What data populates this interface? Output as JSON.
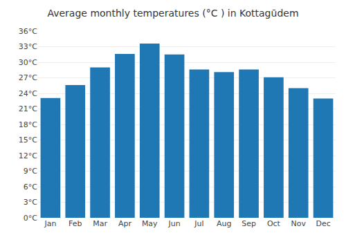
{
  "chart_data": {
    "type": "bar",
    "title": "Average monthly temperatures (°C ) in Kottagūdem",
    "categories": [
      "Jan",
      "Feb",
      "Mar",
      "Apr",
      "May",
      "Jun",
      "Jul",
      "Aug",
      "Sep",
      "Oct",
      "Nov",
      "Dec"
    ],
    "values": [
      23.1,
      25.6,
      29.0,
      31.6,
      33.6,
      31.5,
      28.6,
      28.1,
      28.6,
      27.1,
      25.0,
      23.0
    ],
    "ylim": [
      0,
      36
    ],
    "yticks": [
      {
        "value": 0,
        "label": "0°C"
      },
      {
        "value": 3,
        "label": "3°C"
      },
      {
        "value": 6,
        "label": "6°C"
      },
      {
        "value": 9,
        "label": "9°C"
      },
      {
        "value": 12,
        "label": "12°C"
      },
      {
        "value": 15,
        "label": "15°C"
      },
      {
        "value": 18,
        "label": "18°C"
      },
      {
        "value": 21,
        "label": "21°C"
      },
      {
        "value": 24,
        "label": "24°C"
      },
      {
        "value": 27,
        "label": "27°C"
      },
      {
        "value": 30,
        "label": "30°C"
      },
      {
        "value": 33,
        "label": "33°C"
      },
      {
        "value": 36,
        "label": "36°C"
      }
    ],
    "grid": true
  }
}
